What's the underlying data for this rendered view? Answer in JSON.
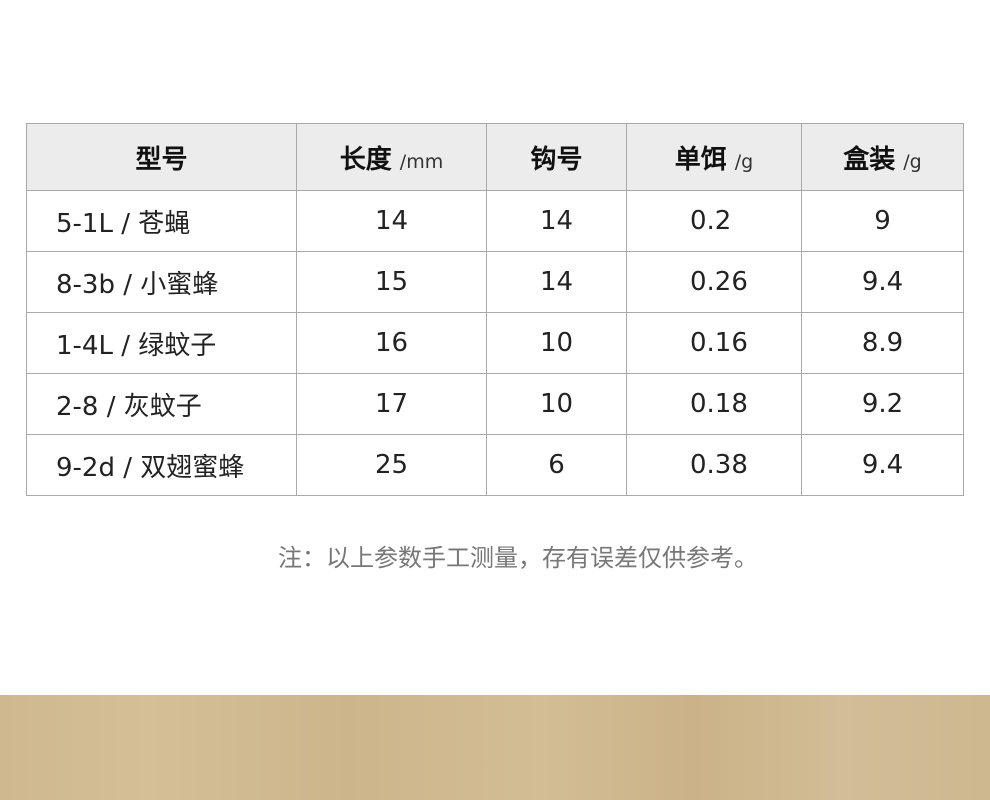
{
  "table": {
    "headers": [
      {
        "label": "型号",
        "unit": ""
      },
      {
        "label": "长度",
        "unit": "/mm"
      },
      {
        "label": "钩号",
        "unit": ""
      },
      {
        "label": "单饵",
        "unit": "/g"
      },
      {
        "label": "盒装",
        "unit": "/g"
      }
    ],
    "rows": [
      [
        "5-1L / 苍蝇",
        "14",
        "14",
        "0.2",
        "9"
      ],
      [
        "8-3b / 小蜜蜂",
        "15",
        "14",
        "0.26",
        "9.4"
      ],
      [
        "1-4L / 绿蚊子",
        "16",
        "10",
        "0.16",
        "8.9"
      ],
      [
        "2-8 / 灰蚊子",
        "17",
        "10",
        "0.18",
        "9.2"
      ],
      [
        "9-2d / 双翅蜜蜂",
        "25",
        "6",
        "0.38",
        "9.4"
      ]
    ]
  },
  "note": "注：以上参数手工测量，存有误差仅供参考。",
  "colors": {
    "header_bg": "#ececec",
    "border": "#a9a9a9",
    "band": "#d0b98f"
  }
}
